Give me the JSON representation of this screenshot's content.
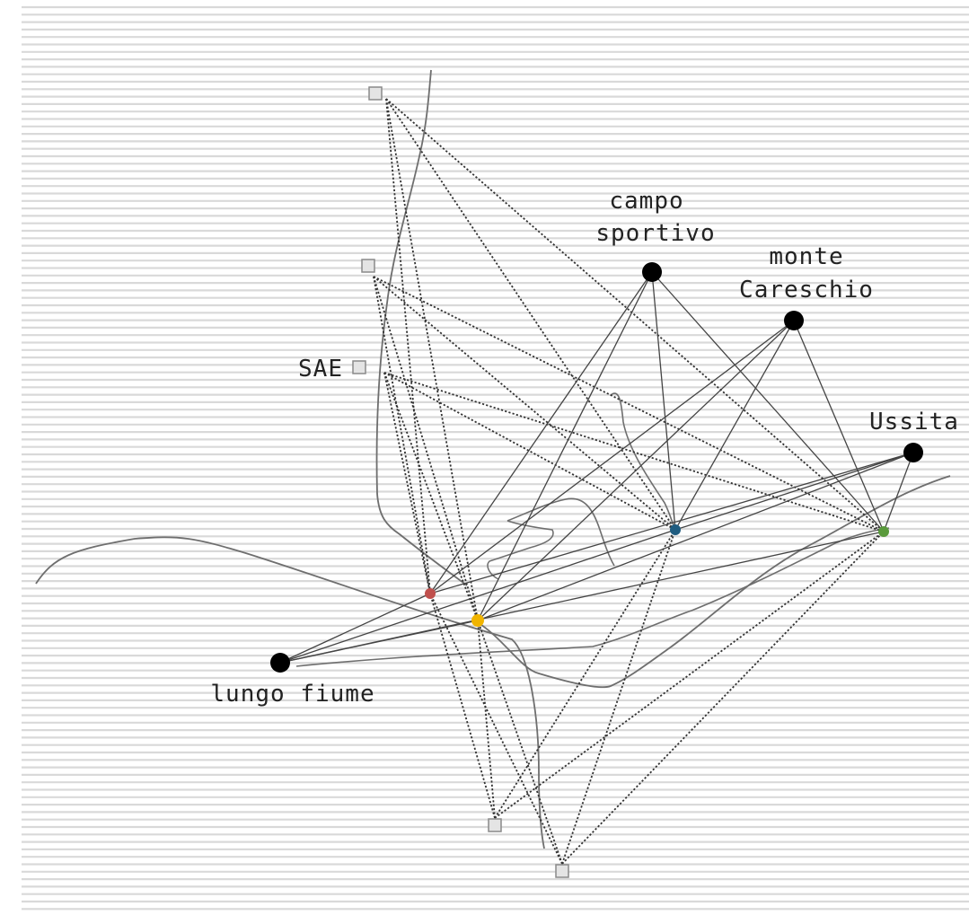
{
  "labels": {
    "campo_line1": "campo",
    "campo_line2": "sportivo",
    "monte_line1": "monte",
    "monte_line2": "Careschio",
    "ussita": "Ussita",
    "sae": "SAE",
    "lungo_fiume": "lungo fiume"
  },
  "colors": {
    "background": "#ffffff",
    "stripe": "#d9d9d9",
    "river": "#6e6e6e",
    "dotted_link": "#333333",
    "solid_link": "#444444",
    "landmark_node": "#000000",
    "sae_square_fill": "#e4e4e4",
    "sae_square_stroke": "#8a8a8a",
    "hub_red": "#c0504d",
    "hub_yellow": "#f0b400",
    "hub_blue": "#1f5c80",
    "hub_green": "#5a9a3c"
  },
  "legend": {
    "landmark_nodes": [
      "campo sportivo",
      "monte Careschio",
      "Ussita",
      "lungo fiume"
    ],
    "sae_squares": 5,
    "colored_hubs": [
      "red",
      "yellow",
      "blue",
      "green"
    ]
  }
}
